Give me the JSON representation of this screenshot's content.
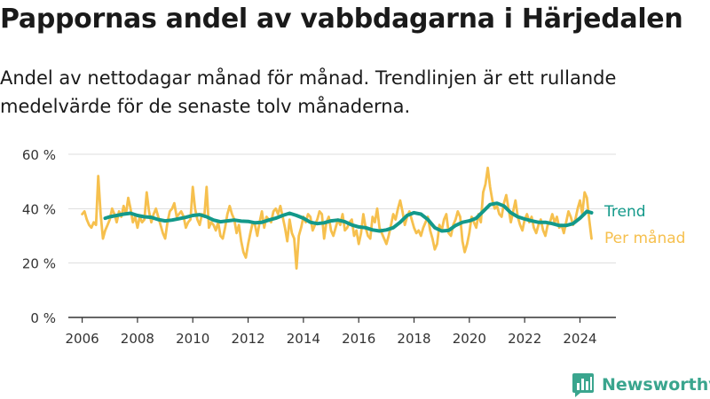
{
  "header": {
    "title": "Pappornas andel av vabbdagarna i Härjedalen",
    "subtitle": "Andel av nettodagar månad för månad. Trendlinjen är ett rullande medelvärde för de senaste tolv månaderna."
  },
  "brand": {
    "name": "Newsworthy",
    "icon": "bar-chart-logo-icon",
    "color": "#3aa58e"
  },
  "colors": {
    "monthly": "#f6c04e",
    "trend": "#13998a",
    "grid": "#dddddd",
    "axis": "#333333",
    "text": "#333333"
  },
  "chart_data": {
    "type": "line",
    "title": "Pappornas andel av vabbdagarna i Härjedalen",
    "xlabel": "",
    "ylabel": "",
    "ylim": [
      0,
      60
    ],
    "xlim": [
      2005.5,
      2025.3
    ],
    "yticks": [
      0,
      20,
      40,
      60
    ],
    "ytick_labels": [
      "0 %",
      "20 %",
      "40 %",
      "60 %"
    ],
    "xticks": [
      2006,
      2008,
      2010,
      2012,
      2014,
      2016,
      2018,
      2020,
      2022,
      2024
    ],
    "xtick_labels": [
      "2006",
      "2008",
      "2010",
      "2012",
      "2014",
      "2016",
      "2018",
      "2020",
      "2022",
      "2024"
    ],
    "series": [
      {
        "name": "Per månad",
        "label": "Per månad",
        "color": "#f6c04e",
        "x": [
          2006.0,
          2006.083,
          2006.167,
          2006.25,
          2006.333,
          2006.417,
          2006.5,
          2006.583,
          2006.667,
          2006.75,
          2006.833,
          2006.917,
          2007.0,
          2007.083,
          2007.167,
          2007.25,
          2007.333,
          2007.417,
          2007.5,
          2007.583,
          2007.667,
          2007.75,
          2007.833,
          2007.917,
          2008.0,
          2008.083,
          2008.167,
          2008.25,
          2008.333,
          2008.417,
          2008.5,
          2008.583,
          2008.667,
          2008.75,
          2008.833,
          2008.917,
          2009.0,
          2009.083,
          2009.167,
          2009.25,
          2009.333,
          2009.417,
          2009.5,
          2009.583,
          2009.667,
          2009.75,
          2009.833,
          2009.917,
          2010.0,
          2010.083,
          2010.167,
          2010.25,
          2010.333,
          2010.417,
          2010.5,
          2010.583,
          2010.667,
          2010.75,
          2010.833,
          2010.917,
          2011.0,
          2011.083,
          2011.167,
          2011.25,
          2011.333,
          2011.417,
          2011.5,
          2011.583,
          2011.667,
          2011.75,
          2011.833,
          2011.917,
          2012.0,
          2012.083,
          2012.167,
          2012.25,
          2012.333,
          2012.417,
          2012.5,
          2012.583,
          2012.667,
          2012.75,
          2012.833,
          2012.917,
          2013.0,
          2013.083,
          2013.167,
          2013.25,
          2013.333,
          2013.417,
          2013.5,
          2013.583,
          2013.667,
          2013.75,
          2013.833,
          2013.917,
          2014.0,
          2014.083,
          2014.167,
          2014.25,
          2014.333,
          2014.417,
          2014.5,
          2014.583,
          2014.667,
          2014.75,
          2014.833,
          2014.917,
          2015.0,
          2015.083,
          2015.167,
          2015.25,
          2015.333,
          2015.417,
          2015.5,
          2015.583,
          2015.667,
          2015.75,
          2015.833,
          2015.917,
          2016.0,
          2016.083,
          2016.167,
          2016.25,
          2016.333,
          2016.417,
          2016.5,
          2016.583,
          2016.667,
          2016.75,
          2016.833,
          2016.917,
          2017.0,
          2017.083,
          2017.167,
          2017.25,
          2017.333,
          2017.417,
          2017.5,
          2017.583,
          2017.667,
          2017.75,
          2017.833,
          2017.917,
          2018.0,
          2018.083,
          2018.167,
          2018.25,
          2018.333,
          2018.417,
          2018.5,
          2018.583,
          2018.667,
          2018.75,
          2018.833,
          2018.917,
          2019.0,
          2019.083,
          2019.167,
          2019.25,
          2019.333,
          2019.417,
          2019.5,
          2019.583,
          2019.667,
          2019.75,
          2019.833,
          2019.917,
          2020.0,
          2020.083,
          2020.167,
          2020.25,
          2020.333,
          2020.417,
          2020.5,
          2020.583,
          2020.667,
          2020.75,
          2020.833,
          2020.917,
          2021.0,
          2021.083,
          2021.167,
          2021.25,
          2021.333,
          2021.417,
          2021.5,
          2021.583,
          2021.667,
          2021.75,
          2021.833,
          2021.917,
          2022.0,
          2022.083,
          2022.167,
          2022.25,
          2022.333,
          2022.417,
          2022.5,
          2022.583,
          2022.667,
          2022.75,
          2022.833,
          2022.917,
          2023.0,
          2023.083,
          2023.167,
          2023.25,
          2023.333,
          2023.417,
          2023.5,
          2023.583,
          2023.667,
          2023.75,
          2023.833,
          2023.917,
          2024.0,
          2024.083,
          2024.167,
          2024.25,
          2024.333,
          2024.417
        ],
        "values": [
          38,
          39,
          36,
          34,
          33,
          35,
          34,
          52,
          38,
          29,
          32,
          34,
          36,
          40,
          38,
          35,
          39,
          37,
          41,
          38,
          44,
          40,
          35,
          37,
          33,
          37,
          35,
          36,
          46,
          39,
          35,
          38,
          40,
          37,
          34,
          31,
          29,
          35,
          39,
          40,
          42,
          37,
          38,
          39,
          37,
          33,
          35,
          36,
          48,
          40,
          36,
          34,
          38,
          37,
          48,
          33,
          35,
          34,
          32,
          35,
          30,
          29,
          33,
          38,
          41,
          38,
          36,
          31,
          34,
          28,
          24,
          22,
          27,
          31,
          35,
          34,
          30,
          35,
          39,
          33,
          37,
          36,
          35,
          39,
          40,
          38,
          41,
          37,
          33,
          28,
          36,
          31,
          29,
          18,
          30,
          33,
          37,
          35,
          38,
          37,
          32,
          34,
          36,
          39,
          38,
          29,
          35,
          37,
          32,
          30,
          33,
          36,
          34,
          38,
          32,
          33,
          35,
          36,
          30,
          32,
          27,
          31,
          38,
          33,
          30,
          29,
          37,
          35,
          40,
          33,
          31,
          29,
          27,
          30,
          34,
          38,
          36,
          40,
          43,
          39,
          34,
          37,
          39,
          36,
          33,
          31,
          32,
          30,
          33,
          35,
          37,
          32,
          29,
          25,
          27,
          34,
          32,
          36,
          38,
          31,
          30,
          34,
          36,
          39,
          37,
          28,
          24,
          27,
          31,
          37,
          35,
          33,
          38,
          35,
          46,
          49,
          55,
          48,
          43,
          40,
          41,
          38,
          37,
          42,
          45,
          40,
          35,
          39,
          43,
          37,
          34,
          32,
          36,
          38,
          35,
          37,
          33,
          31,
          34,
          36,
          32,
          30,
          34,
          35,
          38,
          35,
          37,
          33,
          34,
          31,
          35,
          39,
          37,
          34,
          36,
          40,
          43,
          38,
          46,
          44,
          36,
          29
        ]
      },
      {
        "name": "Trend",
        "label": "Trend",
        "color": "#13998a",
        "x": [
          2006.833,
          2007.0,
          2007.25,
          2007.5,
          2007.75,
          2008.0,
          2008.25,
          2008.5,
          2008.75,
          2009.0,
          2009.25,
          2009.5,
          2009.75,
          2010.0,
          2010.25,
          2010.5,
          2010.75,
          2011.0,
          2011.25,
          2011.5,
          2011.75,
          2012.0,
          2012.25,
          2012.5,
          2012.75,
          2013.0,
          2013.25,
          2013.5,
          2013.75,
          2014.0,
          2014.25,
          2014.5,
          2014.75,
          2015.0,
          2015.25,
          2015.5,
          2015.75,
          2016.0,
          2016.25,
          2016.5,
          2016.75,
          2017.0,
          2017.25,
          2017.5,
          2017.75,
          2018.0,
          2018.25,
          2018.5,
          2018.75,
          2019.0,
          2019.25,
          2019.5,
          2019.75,
          2020.0,
          2020.25,
          2020.5,
          2020.75,
          2021.0,
          2021.25,
          2021.5,
          2021.75,
          2022.0,
          2022.25,
          2022.5,
          2022.75,
          2023.0,
          2023.25,
          2023.5,
          2023.75,
          2024.0,
          2024.25,
          2024.417
        ],
        "values": [
          36.5,
          37.0,
          37.5,
          38.0,
          38.3,
          37.5,
          37.0,
          36.8,
          36.0,
          35.5,
          35.8,
          36.3,
          36.8,
          37.5,
          37.8,
          37.0,
          35.8,
          35.2,
          35.5,
          35.8,
          35.4,
          35.3,
          34.8,
          35.0,
          35.8,
          36.5,
          37.5,
          38.3,
          37.5,
          36.5,
          35.0,
          34.5,
          34.8,
          35.5,
          35.8,
          35.2,
          34.0,
          33.3,
          33.0,
          32.2,
          31.8,
          32.2,
          33.0,
          35.0,
          37.5,
          38.5,
          38.0,
          36.0,
          33.0,
          31.8,
          32.0,
          33.8,
          35.0,
          35.5,
          36.5,
          39.0,
          41.5,
          42.0,
          41.0,
          38.5,
          37.0,
          36.2,
          35.5,
          35.0,
          35.0,
          34.5,
          33.8,
          33.8,
          34.5,
          36.5,
          39.0,
          38.5
        ]
      }
    ]
  }
}
